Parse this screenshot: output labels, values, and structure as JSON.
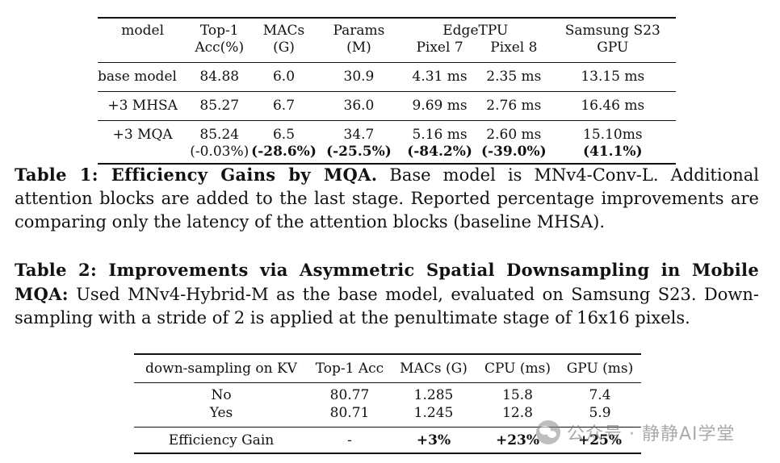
{
  "table1": {
    "header": {
      "model": "model",
      "top1_a": "Top-1",
      "top1_b": "Acc(%)",
      "macs_a": "MACs",
      "macs_b": "(G)",
      "params_a": "Params",
      "params_b": "(M)",
      "edgetpu": "EdgeTPU",
      "pixel7": "Pixel 7",
      "pixel8": "Pixel 8",
      "samsung_a": "Samsung S23",
      "samsung_b": "GPU"
    },
    "rows": [
      {
        "model": "base model",
        "top1": "84.88",
        "macs": "6.0",
        "params": "30.9",
        "pixel7": "4.31 ms",
        "pixel8": "2.35 ms",
        "gpu": "13.15 ms"
      },
      {
        "model": "+3 MHSA",
        "top1": "85.27",
        "macs": "6.7",
        "params": "36.0",
        "pixel7": "9.69 ms",
        "pixel8": "2.76 ms",
        "gpu": "16.46 ms"
      },
      {
        "model": "+3 MQA",
        "top1": "85.24",
        "macs": "6.5",
        "params": "34.7",
        "pixel7": "5.16 ms",
        "pixel8": "2.60 ms",
        "gpu": "15.10ms"
      }
    ],
    "improvement": {
      "top1": "(-0.03%)",
      "macs": "(-28.6%)",
      "params": "(-25.5%)",
      "pixel7": "(-84.2%)",
      "pixel8": "(-39.0%)",
      "gpu": "(41.1%)"
    }
  },
  "caption1": {
    "label": "Table 1: Efficiency Gains by MQA.",
    "text": "Base model is MNv4-Conv-L. Additional attention blocks are added to the last stage. Reported percentage improvements are comparing only the latency of the attention blocks (baseline MHSA)."
  },
  "caption2": {
    "label": "Table 2: Improvements via Asymmetric Spatial Downsampling in Mobile MQA:",
    "text": "Used MNv4-Hybrid-M as the base model, evaluated on Samsung S23. Down-sampling with a stride of 2 is applied at the penultimate stage of 16x16 pixels."
  },
  "table2": {
    "header": [
      "down-sampling on KV",
      "Top-1 Acc",
      "MACs (G)",
      "CPU (ms)",
      "GPU (ms)"
    ],
    "rows": [
      [
        "No",
        "80.77",
        "1.285",
        "15.8",
        "7.4"
      ],
      [
        "Yes",
        "80.71",
        "1.245",
        "12.8",
        "5.9"
      ]
    ],
    "gain": [
      "Efficiency Gain",
      "-",
      "+3%",
      "+23%",
      "+25%"
    ]
  },
  "watermark": {
    "text": "公众号 · 静静AI学堂",
    "icon": "wechat-icon"
  }
}
